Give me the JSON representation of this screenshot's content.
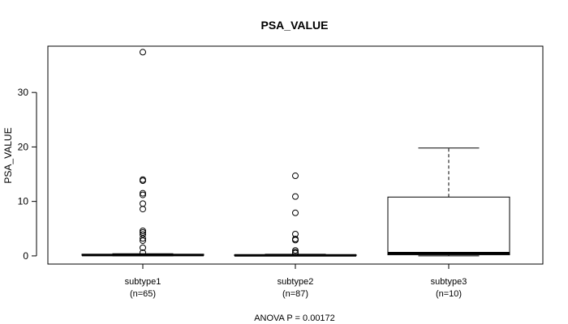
{
  "chart_data": {
    "type": "box",
    "title": "PSA_VALUE",
    "ylabel": "PSA_VALUE",
    "xlabel": "",
    "footnote": "ANOVA P = 0.00172",
    "ylim": [
      -1.5,
      38.5
    ],
    "yticks": [
      0,
      10,
      20,
      30
    ],
    "grid": false,
    "groups": [
      {
        "label": "subtype1",
        "n_label": "(n=65)",
        "whisker_low": 0.0,
        "q1": 0.1,
        "median": 0.15,
        "q3": 0.3,
        "whisker_high": 0.4,
        "outliers": [
          37.4,
          14.0,
          13.8,
          11.5,
          11.2,
          9.6,
          8.6,
          4.6,
          4.3,
          3.9,
          3.2,
          2.8,
          1.5,
          0.6
        ]
      },
      {
        "label": "subtype2",
        "n_label": "(n=87)",
        "whisker_low": 0.0,
        "q1": 0.05,
        "median": 0.1,
        "q3": 0.2,
        "whisker_high": 0.3,
        "outliers": [
          14.7,
          10.9,
          7.9,
          4.0,
          3.1,
          2.9,
          1.0,
          0.7,
          0.5
        ]
      },
      {
        "label": "subtype3",
        "n_label": "(n=10)",
        "whisker_low": 0.0,
        "q1": 0.2,
        "median": 0.5,
        "q3": 10.8,
        "whisker_high": 19.8,
        "outliers": []
      }
    ]
  }
}
